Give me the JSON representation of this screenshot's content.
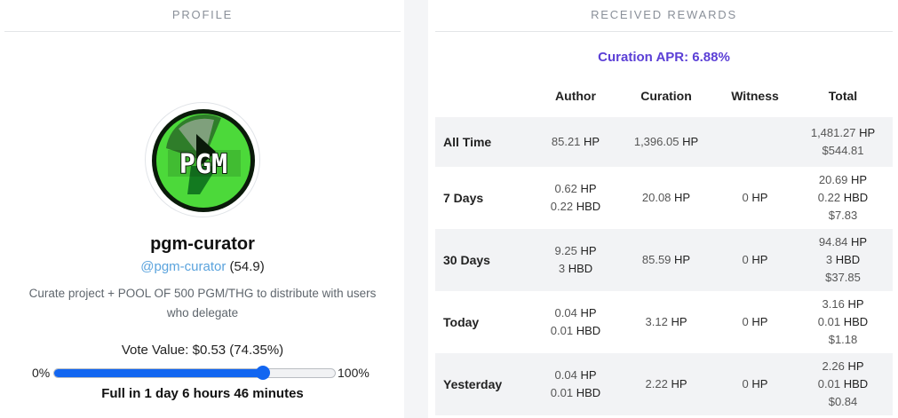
{
  "profile": {
    "section_title": "PROFILE",
    "avatar_text": "PGM",
    "username": "pgm-curator",
    "handle": "@pgm-curator",
    "reputation": "(54.9)",
    "about": "Curate project + POOL OF 500 PGM/THG to distribute with users who delegate",
    "vote_value_label": "Vote Value: $0.53 (74.35%)",
    "voting_power_fraction": 0.7435,
    "slider_min": "0%",
    "slider_max": "100%",
    "full_in": "Full in 1 day 6 hours 46 minutes"
  },
  "rewards": {
    "section_title": "RECEIVED REWARDS",
    "curation_apr": "Curation APR: 6.88%",
    "headers": [
      "",
      "Author",
      "Curation",
      "Witness",
      "Total"
    ],
    "rows": [
      {
        "label": "All Time",
        "author": [
          {
            "num": "85.21",
            "unit": "HP"
          }
        ],
        "curation": [
          {
            "num": "1,396.05",
            "unit": "HP"
          }
        ],
        "witness": [],
        "total": [
          {
            "num": "1,481.27",
            "unit": "HP"
          },
          {
            "num": "$544.81",
            "unit": ""
          }
        ]
      },
      {
        "label": "7 Days",
        "author": [
          {
            "num": "0.62",
            "unit": "HP"
          },
          {
            "num": "0.22",
            "unit": "HBD"
          }
        ],
        "curation": [
          {
            "num": "20.08",
            "unit": "HP"
          }
        ],
        "witness": [
          {
            "num": "0",
            "unit": "HP"
          }
        ],
        "total": [
          {
            "num": "20.69",
            "unit": "HP"
          },
          {
            "num": "0.22",
            "unit": "HBD"
          },
          {
            "num": "$7.83",
            "unit": ""
          }
        ]
      },
      {
        "label": "30 Days",
        "author": [
          {
            "num": "9.25",
            "unit": "HP"
          },
          {
            "num": "3",
            "unit": "HBD"
          }
        ],
        "curation": [
          {
            "num": "85.59",
            "unit": "HP"
          }
        ],
        "witness": [
          {
            "num": "0",
            "unit": "HP"
          }
        ],
        "total": [
          {
            "num": "94.84",
            "unit": "HP"
          },
          {
            "num": "3",
            "unit": "HBD"
          },
          {
            "num": "$37.85",
            "unit": ""
          }
        ]
      },
      {
        "label": "Today",
        "author": [
          {
            "num": "0.04",
            "unit": "HP"
          },
          {
            "num": "0.01",
            "unit": "HBD"
          }
        ],
        "curation": [
          {
            "num": "3.12",
            "unit": "HP"
          }
        ],
        "witness": [
          {
            "num": "0",
            "unit": "HP"
          }
        ],
        "total": [
          {
            "num": "3.16",
            "unit": "HP"
          },
          {
            "num": "0.01",
            "unit": "HBD"
          },
          {
            "num": "$1.18",
            "unit": ""
          }
        ]
      },
      {
        "label": "Yesterday",
        "author": [
          {
            "num": "0.04",
            "unit": "HP"
          },
          {
            "num": "0.01",
            "unit": "HBD"
          }
        ],
        "curation": [
          {
            "num": "2.22",
            "unit": "HP"
          }
        ],
        "witness": [
          {
            "num": "0",
            "unit": "HP"
          }
        ],
        "total": [
          {
            "num": "2.26",
            "unit": "HP"
          },
          {
            "num": "0.01",
            "unit": "HBD"
          },
          {
            "num": "$0.84",
            "unit": ""
          }
        ]
      }
    ]
  },
  "colors": {
    "accent": "#1266f1",
    "apr": "#5b3fd6",
    "handle": "#5aa3dd",
    "avatar_green": "#4cd93a"
  }
}
